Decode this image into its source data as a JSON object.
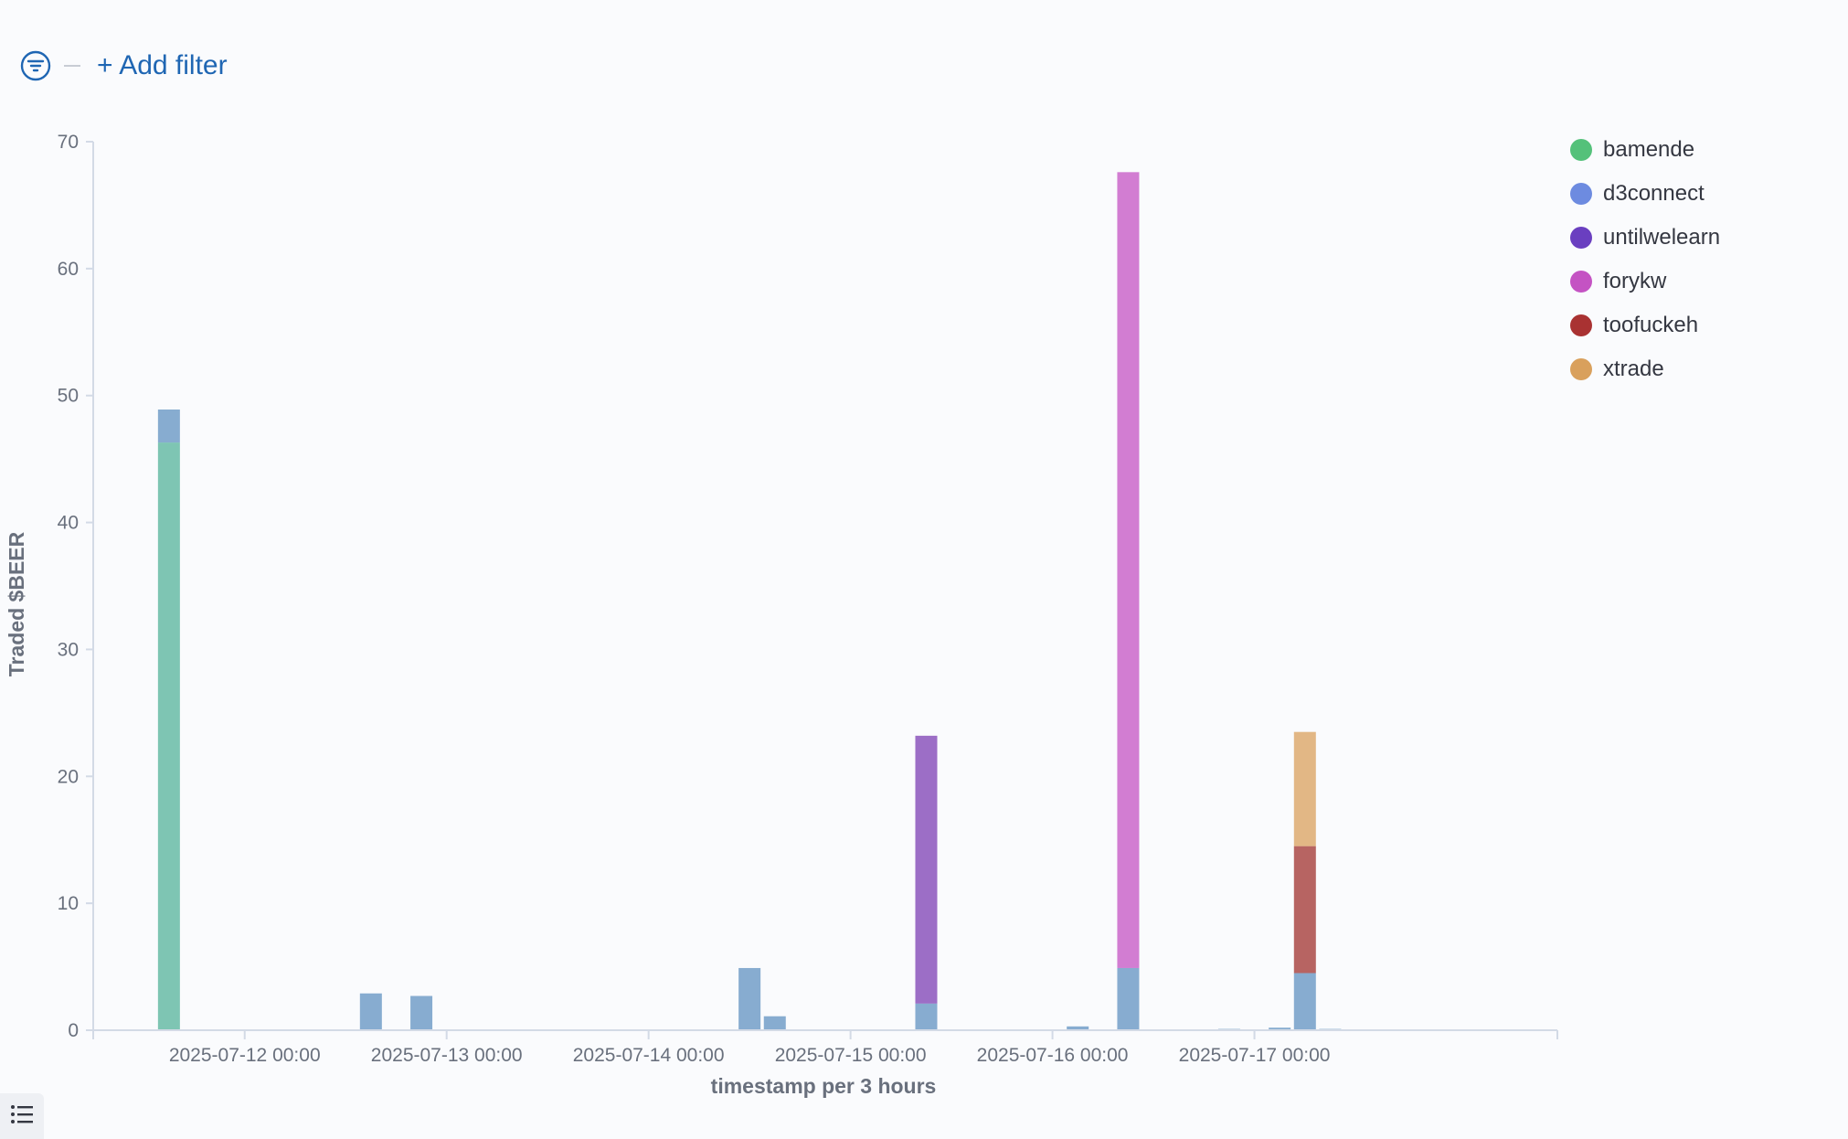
{
  "toolbar": {
    "add_filter_label": "+ Add filter"
  },
  "icons": {
    "filter": "filter-icon",
    "legend_toggle": "list-icon"
  },
  "chart_data": {
    "type": "bar",
    "stacked": true,
    "title": "",
    "xlabel": "timestamp per 3 hours",
    "ylabel": "Traded $BEER",
    "ylim": [
      0,
      70
    ],
    "yticks": [
      0,
      10,
      20,
      30,
      40,
      50,
      60,
      70
    ],
    "xlim": [
      "2025-07-11 06:00",
      "2025-07-18 12:00"
    ],
    "xticks": [
      "2025-07-12 00:00",
      "2025-07-13 00:00",
      "2025-07-14 00:00",
      "2025-07-15 00:00",
      "2025-07-16 00:00",
      "2025-07-17 00:00"
    ],
    "interval_hours": 3,
    "legend_position": "top-right",
    "series": [
      {
        "name": "bamende",
        "color": "#54b399",
        "dot_color": "#54c17a"
      },
      {
        "name": "d3connect",
        "color": "#6092c0",
        "dot_color": "#6d8be0"
      },
      {
        "name": "untilwelearn",
        "color": "#7c3fb3",
        "dot_color": "#6a3fc0"
      },
      {
        "name": "forykw",
        "color": "#c453c3",
        "dot_color": "#c453c3"
      },
      {
        "name": "toofuckeh",
        "color": "#a0322e",
        "dot_color": "#a93232"
      },
      {
        "name": "xtrade",
        "color": "#d9a05c",
        "dot_color": "#d9a05c"
      }
    ],
    "bars": [
      {
        "x": "2025-07-11 15:00",
        "values": {
          "bamende": 46.3,
          "d3connect": 2.6
        }
      },
      {
        "x": "2025-07-12 15:00",
        "values": {
          "d3connect": 2.9
        }
      },
      {
        "x": "2025-07-12 21:00",
        "values": {
          "d3connect": 2.7
        }
      },
      {
        "x": "2025-07-14 12:00",
        "values": {
          "d3connect": 4.9
        }
      },
      {
        "x": "2025-07-14 15:00",
        "values": {
          "d3connect": 1.1
        }
      },
      {
        "x": "2025-07-15 09:00",
        "values": {
          "d3connect": 2.1,
          "untilwelearn": 21.1
        }
      },
      {
        "x": "2025-07-16 03:00",
        "values": {
          "d3connect": 0.3
        }
      },
      {
        "x": "2025-07-16 09:00",
        "values": {
          "d3connect": 4.9,
          "forykw": 62.7
        }
      },
      {
        "x": "2025-07-16 21:00",
        "values": {
          "d3connect": 0.1
        }
      },
      {
        "x": "2025-07-17 03:00",
        "values": {
          "d3connect": 0.2
        }
      },
      {
        "x": "2025-07-17 06:00",
        "values": {
          "d3connect": 4.5,
          "toofuckeh": 10.0,
          "xtrade": 9.0
        }
      },
      {
        "x": "2025-07-17 09:00",
        "values": {
          "d3connect": 0.1
        }
      }
    ]
  }
}
